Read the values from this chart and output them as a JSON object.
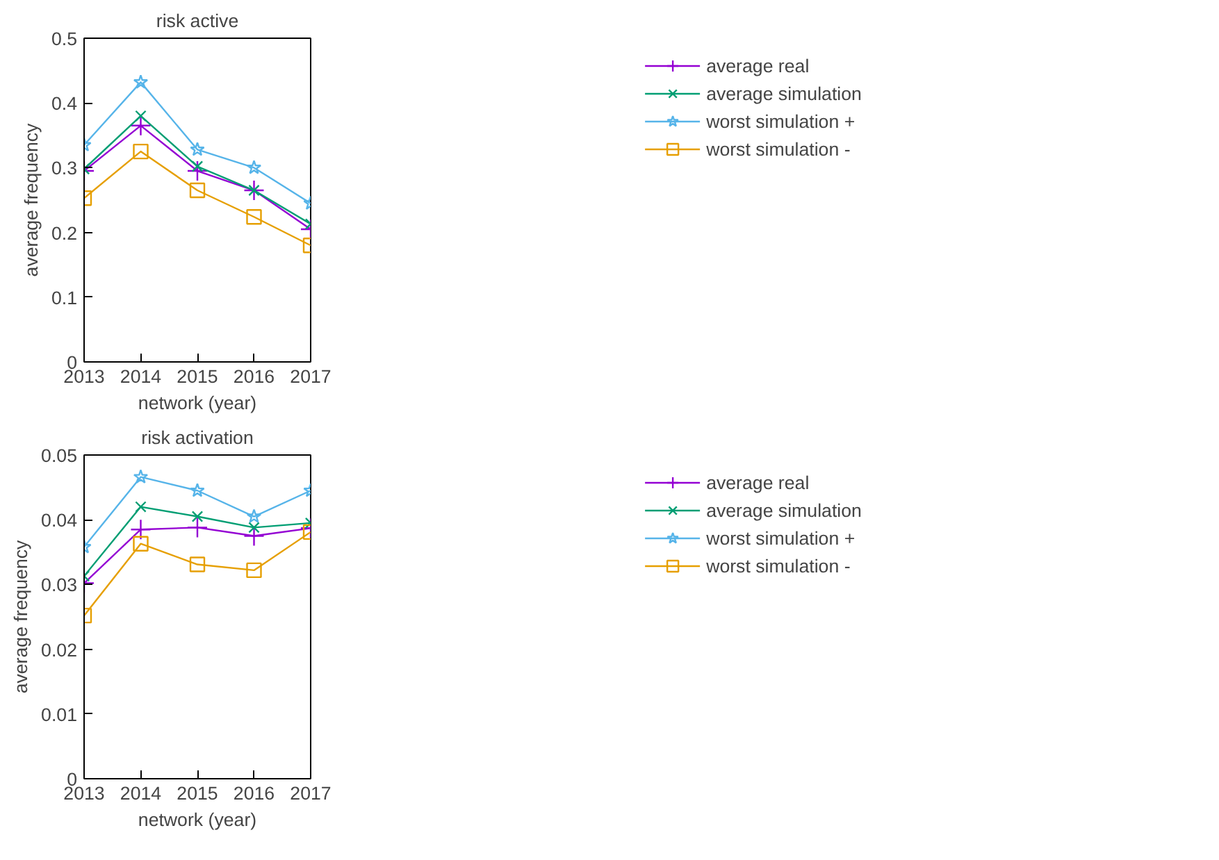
{
  "chart_data": [
    {
      "type": "line",
      "title": "risk active",
      "xlabel": "network (year)",
      "ylabel": "average frequency",
      "x": [
        2013,
        2014,
        2015,
        2016,
        2017
      ],
      "xlim": [
        2013,
        2017
      ],
      "xticks": [
        2013,
        2014,
        2015,
        2016,
        2017
      ],
      "ylim": [
        0,
        0.5
      ],
      "yticks": [
        0,
        0.1,
        0.2,
        0.3,
        0.4,
        0.5
      ],
      "grid": false,
      "legend": "top right",
      "series": [
        {
          "name": "average real",
          "color": "#9400d3",
          "marker": "cross",
          "values": [
            0.295,
            0.365,
            0.295,
            0.265,
            0.205
          ]
        },
        {
          "name": "average simulation",
          "color": "#009e73",
          "marker": "x",
          "values": [
            0.298,
            0.38,
            0.302,
            0.265,
            0.213
          ]
        },
        {
          "name": "worst simulation +",
          "color": "#56b4e9",
          "marker": "star",
          "values": [
            0.335,
            0.432,
            0.328,
            0.3,
            0.245
          ]
        },
        {
          "name": "worst simulation -",
          "color": "#e69f00",
          "marker": "square",
          "values": [
            0.253,
            0.325,
            0.265,
            0.224,
            0.18
          ]
        }
      ]
    },
    {
      "type": "line",
      "title": "risk activation",
      "xlabel": "network (year)",
      "ylabel": "average frequency",
      "x": [
        2013,
        2014,
        2015,
        2016,
        2017
      ],
      "xlim": [
        2013,
        2017
      ],
      "xticks": [
        2013,
        2014,
        2015,
        2016,
        2017
      ],
      "ylim": [
        0,
        0.05
      ],
      "yticks": [
        0,
        0.01,
        0.02,
        0.03,
        0.04,
        0.05
      ],
      "grid": false,
      "legend": "top right",
      "series": [
        {
          "name": "average real",
          "color": "#9400d3",
          "marker": "cross",
          "values": [
            0.0302,
            0.0385,
            0.0388,
            0.0375,
            0.0387
          ]
        },
        {
          "name": "average simulation",
          "color": "#009e73",
          "marker": "x",
          "values": [
            0.0313,
            0.042,
            0.0405,
            0.0388,
            0.0395
          ]
        },
        {
          "name": "worst simulation +",
          "color": "#56b4e9",
          "marker": "star",
          "values": [
            0.0358,
            0.0466,
            0.0445,
            0.0405,
            0.0445
          ]
        },
        {
          "name": "worst simulation -",
          "color": "#e69f00",
          "marker": "square",
          "values": [
            0.0252,
            0.0363,
            0.0331,
            0.0322,
            0.0381
          ]
        }
      ]
    }
  ]
}
